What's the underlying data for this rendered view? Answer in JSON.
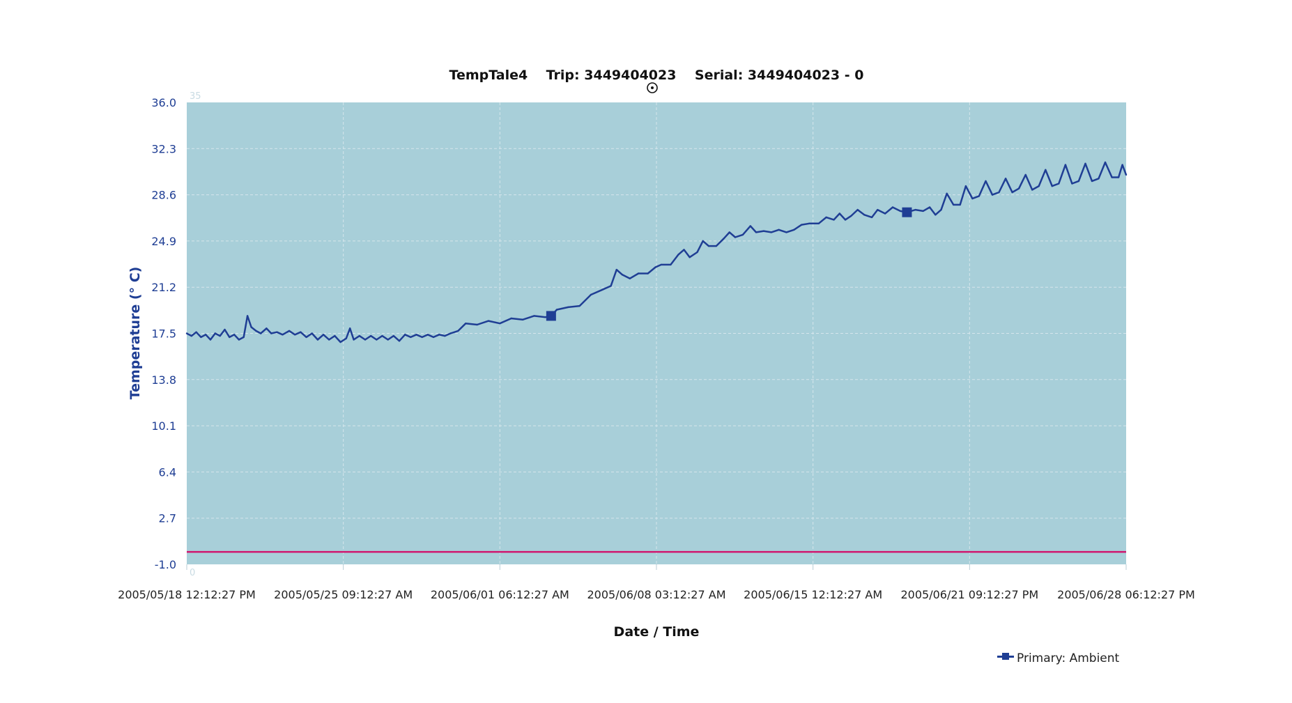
{
  "colors": {
    "plot_background": "#a8cfd9",
    "grid": "#d6e6ec",
    "series": "#1f3e94",
    "baseline": "#d0156e",
    "y_tick_text": "#1f3e94"
  },
  "chart_data": {
    "type": "line",
    "title": "TempTale4    Trip: 3449404023    Serial: 3449404023 - 0",
    "xlabel": "Date / Time",
    "ylabel": "Temperature (° C)",
    "ylim": [
      -1.0,
      36.0
    ],
    "y_ticks": [
      "36.0",
      "32.3",
      "28.6",
      "24.9",
      "21.2",
      "17.5",
      "13.8",
      "10.1",
      "6.4",
      "2.7",
      "-1.0"
    ],
    "x_ticks": [
      "2005/05/18 12:12:27 PM",
      "2005/05/25 09:12:27 AM",
      "2005/06/01 06:12:27 AM",
      "2005/06/08 03:12:27 AM",
      "2005/06/15 12:12:27 AM",
      "2005/06/21 09:12:27 PM",
      "2005/06/28 06:12:27 PM"
    ],
    "xlim": [
      "2005-05-18T12:12:27",
      "2005-06-28T18:12:27"
    ],
    "corner_labels": {
      "top": "35",
      "bottom": "0"
    },
    "grid": true,
    "legend_position": "bottom-right",
    "baseline_value": 0.0,
    "series": [
      {
        "name": "Primary: Ambient",
        "marker_points": [
          {
            "x": "2005-06-03T12:12:27",
            "y": 18.9
          },
          {
            "x": "2005-06-19T03:12:27",
            "y": 27.2
          }
        ],
        "points": [
          {
            "x": "2005-05-18T12:12:27",
            "y": 17.5
          },
          {
            "x": "2005-05-18T17:12:27",
            "y": 17.3
          },
          {
            "x": "2005-05-18T22:12:27",
            "y": 17.6
          },
          {
            "x": "2005-05-19T03:12:27",
            "y": 17.2
          },
          {
            "x": "2005-05-19T08:12:27",
            "y": 17.4
          },
          {
            "x": "2005-05-19T13:12:27",
            "y": 17.0
          },
          {
            "x": "2005-05-19T18:12:27",
            "y": 17.5
          },
          {
            "x": "2005-05-19T23:12:27",
            "y": 17.3
          },
          {
            "x": "2005-05-20T04:12:27",
            "y": 17.8
          },
          {
            "x": "2005-05-20T09:12:27",
            "y": 17.2
          },
          {
            "x": "2005-05-20T14:12:27",
            "y": 17.4
          },
          {
            "x": "2005-05-20T19:12:27",
            "y": 17.0
          },
          {
            "x": "2005-05-21T00:12:27",
            "y": 17.2
          },
          {
            "x": "2005-05-21T04:12:27",
            "y": 18.9
          },
          {
            "x": "2005-05-21T08:12:27",
            "y": 18.0
          },
          {
            "x": "2005-05-21T13:12:27",
            "y": 17.7
          },
          {
            "x": "2005-05-21T18:12:27",
            "y": 17.5
          },
          {
            "x": "2005-05-22T00:12:27",
            "y": 17.9
          },
          {
            "x": "2005-05-22T05:12:27",
            "y": 17.5
          },
          {
            "x": "2005-05-22T11:12:27",
            "y": 17.6
          },
          {
            "x": "2005-05-22T17:12:27",
            "y": 17.4
          },
          {
            "x": "2005-05-23T00:12:27",
            "y": 17.7
          },
          {
            "x": "2005-05-23T06:12:27",
            "y": 17.4
          },
          {
            "x": "2005-05-23T12:12:27",
            "y": 17.6
          },
          {
            "x": "2005-05-23T18:12:27",
            "y": 17.2
          },
          {
            "x": "2005-05-24T00:12:27",
            "y": 17.5
          },
          {
            "x": "2005-05-24T06:12:27",
            "y": 17.0
          },
          {
            "x": "2005-05-24T12:12:27",
            "y": 17.4
          },
          {
            "x": "2005-05-24T18:12:27",
            "y": 17.0
          },
          {
            "x": "2005-05-25T00:12:27",
            "y": 17.3
          },
          {
            "x": "2005-05-25T06:12:27",
            "y": 16.8
          },
          {
            "x": "2005-05-25T12:12:27",
            "y": 17.1
          },
          {
            "x": "2005-05-25T16:12:27",
            "y": 17.9
          },
          {
            "x": "2005-05-25T20:12:27",
            "y": 17.0
          },
          {
            "x": "2005-05-26T02:12:27",
            "y": 17.3
          },
          {
            "x": "2005-05-26T08:12:27",
            "y": 17.0
          },
          {
            "x": "2005-05-26T14:12:27",
            "y": 17.3
          },
          {
            "x": "2005-05-26T20:12:27",
            "y": 17.0
          },
          {
            "x": "2005-05-27T02:12:27",
            "y": 17.3
          },
          {
            "x": "2005-05-27T08:12:27",
            "y": 17.0
          },
          {
            "x": "2005-05-27T14:12:27",
            "y": 17.3
          },
          {
            "x": "2005-05-27T20:12:27",
            "y": 16.9
          },
          {
            "x": "2005-05-28T02:12:27",
            "y": 17.4
          },
          {
            "x": "2005-05-28T08:12:27",
            "y": 17.2
          },
          {
            "x": "2005-05-28T14:12:27",
            "y": 17.4
          },
          {
            "x": "2005-05-28T20:12:27",
            "y": 17.2
          },
          {
            "x": "2005-05-29T02:12:27",
            "y": 17.4
          },
          {
            "x": "2005-05-29T08:12:27",
            "y": 17.2
          },
          {
            "x": "2005-05-29T14:12:27",
            "y": 17.4
          },
          {
            "x": "2005-05-29T20:12:27",
            "y": 17.3
          },
          {
            "x": "2005-05-30T02:12:27",
            "y": 17.5
          },
          {
            "x": "2005-05-30T10:12:27",
            "y": 17.7
          },
          {
            "x": "2005-05-30T18:12:27",
            "y": 18.3
          },
          {
            "x": "2005-05-31T06:12:27",
            "y": 18.2
          },
          {
            "x": "2005-05-31T18:12:27",
            "y": 18.5
          },
          {
            "x": "2005-06-01T06:12:27",
            "y": 18.3
          },
          {
            "x": "2005-06-01T18:12:27",
            "y": 18.7
          },
          {
            "x": "2005-06-02T06:12:27",
            "y": 18.6
          },
          {
            "x": "2005-06-02T18:12:27",
            "y": 18.9
          },
          {
            "x": "2005-06-03T06:12:27",
            "y": 18.8
          },
          {
            "x": "2005-06-03T12:12:27",
            "y": 18.9
          },
          {
            "x": "2005-06-03T18:12:27",
            "y": 19.4
          },
          {
            "x": "2005-06-04T06:12:27",
            "y": 19.6
          },
          {
            "x": "2005-06-04T18:12:27",
            "y": 19.7
          },
          {
            "x": "2005-06-05T06:12:27",
            "y": 20.6
          },
          {
            "x": "2005-06-05T18:12:27",
            "y": 21.0
          },
          {
            "x": "2005-06-06T03:12:27",
            "y": 21.3
          },
          {
            "x": "2005-06-06T09:12:27",
            "y": 22.6
          },
          {
            "x": "2005-06-06T15:12:27",
            "y": 22.2
          },
          {
            "x": "2005-06-06T23:12:27",
            "y": 21.9
          },
          {
            "x": "2005-06-07T08:12:27",
            "y": 22.3
          },
          {
            "x": "2005-06-07T18:12:27",
            "y": 22.3
          },
          {
            "x": "2005-06-08T02:12:27",
            "y": 22.8
          },
          {
            "x": "2005-06-08T08:12:27",
            "y": 23.0
          },
          {
            "x": "2005-06-08T18:12:27",
            "y": 23.0
          },
          {
            "x": "2005-06-09T02:12:27",
            "y": 23.8
          },
          {
            "x": "2005-06-09T08:12:27",
            "y": 24.2
          },
          {
            "x": "2005-06-09T14:12:27",
            "y": 23.6
          },
          {
            "x": "2005-06-09T22:12:27",
            "y": 24.0
          },
          {
            "x": "2005-06-10T04:12:27",
            "y": 24.9
          },
          {
            "x": "2005-06-10T10:12:27",
            "y": 24.5
          },
          {
            "x": "2005-06-10T18:12:27",
            "y": 24.5
          },
          {
            "x": "2005-06-11T02:12:27",
            "y": 25.1
          },
          {
            "x": "2005-06-11T08:12:27",
            "y": 25.6
          },
          {
            "x": "2005-06-11T14:12:27",
            "y": 25.2
          },
          {
            "x": "2005-06-11T22:12:27",
            "y": 25.4
          },
          {
            "x": "2005-06-12T06:12:27",
            "y": 26.1
          },
          {
            "x": "2005-06-12T12:12:27",
            "y": 25.6
          },
          {
            "x": "2005-06-12T20:12:27",
            "y": 25.7
          },
          {
            "x": "2005-06-13T04:12:27",
            "y": 25.6
          },
          {
            "x": "2005-06-13T12:12:27",
            "y": 25.8
          },
          {
            "x": "2005-06-13T20:12:27",
            "y": 25.6
          },
          {
            "x": "2005-06-14T04:12:27",
            "y": 25.8
          },
          {
            "x": "2005-06-14T12:12:27",
            "y": 26.2
          },
          {
            "x": "2005-06-14T20:12:27",
            "y": 26.3
          },
          {
            "x": "2005-06-15T06:12:27",
            "y": 26.3
          },
          {
            "x": "2005-06-15T14:12:27",
            "y": 26.8
          },
          {
            "x": "2005-06-15T22:12:27",
            "y": 26.6
          },
          {
            "x": "2005-06-16T04:12:27",
            "y": 27.1
          },
          {
            "x": "2005-06-16T10:12:27",
            "y": 26.6
          },
          {
            "x": "2005-06-16T16:12:27",
            "y": 26.9
          },
          {
            "x": "2005-06-16T23:12:27",
            "y": 27.4
          },
          {
            "x": "2005-06-17T06:12:27",
            "y": 27.0
          },
          {
            "x": "2005-06-17T14:12:27",
            "y": 26.8
          },
          {
            "x": "2005-06-17T20:12:27",
            "y": 27.4
          },
          {
            "x": "2005-06-18T04:12:27",
            "y": 27.1
          },
          {
            "x": "2005-06-18T12:12:27",
            "y": 27.6
          },
          {
            "x": "2005-06-18T20:12:27",
            "y": 27.3
          },
          {
            "x": "2005-06-19T03:12:27",
            "y": 27.2
          },
          {
            "x": "2005-06-19T12:12:27",
            "y": 27.4
          },
          {
            "x": "2005-06-19T20:12:27",
            "y": 27.3
          },
          {
            "x": "2005-06-20T03:12:27",
            "y": 27.6
          },
          {
            "x": "2005-06-20T09:12:27",
            "y": 27.0
          },
          {
            "x": "2005-06-20T15:12:27",
            "y": 27.4
          },
          {
            "x": "2005-06-20T21:12:27",
            "y": 28.7
          },
          {
            "x": "2005-06-21T04:12:27",
            "y": 27.8
          },
          {
            "x": "2005-06-21T11:12:27",
            "y": 27.8
          },
          {
            "x": "2005-06-21T17:12:27",
            "y": 29.3
          },
          {
            "x": "2005-06-22T00:12:27",
            "y": 28.3
          },
          {
            "x": "2005-06-22T07:12:27",
            "y": 28.5
          },
          {
            "x": "2005-06-22T14:12:27",
            "y": 29.7
          },
          {
            "x": "2005-06-22T21:12:27",
            "y": 28.6
          },
          {
            "x": "2005-06-23T04:12:27",
            "y": 28.8
          },
          {
            "x": "2005-06-23T11:12:27",
            "y": 29.9
          },
          {
            "x": "2005-06-23T18:12:27",
            "y": 28.8
          },
          {
            "x": "2005-06-24T01:12:27",
            "y": 29.1
          },
          {
            "x": "2005-06-24T08:12:27",
            "y": 30.2
          },
          {
            "x": "2005-06-24T15:12:27",
            "y": 29.0
          },
          {
            "x": "2005-06-24T22:12:27",
            "y": 29.3
          },
          {
            "x": "2005-06-25T05:12:27",
            "y": 30.6
          },
          {
            "x": "2005-06-25T12:12:27",
            "y": 29.3
          },
          {
            "x": "2005-06-25T19:12:27",
            "y": 29.5
          },
          {
            "x": "2005-06-26T02:12:27",
            "y": 31.0
          },
          {
            "x": "2005-06-26T09:12:27",
            "y": 29.5
          },
          {
            "x": "2005-06-26T16:12:27",
            "y": 29.7
          },
          {
            "x": "2005-06-26T23:12:27",
            "y": 31.1
          },
          {
            "x": "2005-06-27T06:12:27",
            "y": 29.7
          },
          {
            "x": "2005-06-27T13:12:27",
            "y": 29.9
          },
          {
            "x": "2005-06-27T20:12:27",
            "y": 31.2
          },
          {
            "x": "2005-06-28T03:12:27",
            "y": 30.0
          },
          {
            "x": "2005-06-28T10:12:27",
            "y": 30.0
          },
          {
            "x": "2005-06-28T14:12:27",
            "y": 31.0
          },
          {
            "x": "2005-06-28T18:12:27",
            "y": 30.2
          }
        ]
      }
    ]
  }
}
